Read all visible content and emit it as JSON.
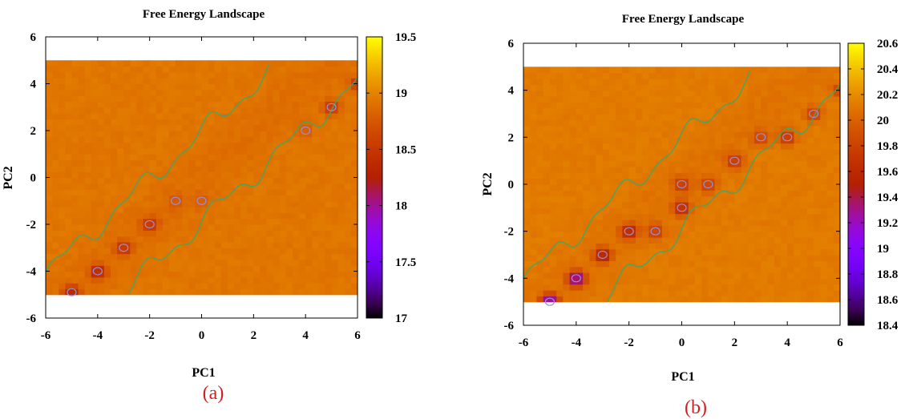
{
  "panels": [
    {
      "caption": "(a)",
      "chart_data": {
        "type": "heatmap",
        "title": "Free Energy Landscape",
        "xlabel": "PC1",
        "ylabel": "PC2",
        "xlim": [
          -6,
          6
        ],
        "ylim": [
          -6,
          6
        ],
        "data_extent": {
          "x": [
            -6,
            6
          ],
          "y": [
            -5,
            5
          ]
        },
        "xticks": [
          -6,
          -4,
          -2,
          0,
          2,
          4,
          6
        ],
        "yticks": [
          -6,
          -4,
          -2,
          0,
          2,
          4,
          6
        ],
        "colorbar": {
          "min": 17,
          "max": 19.5,
          "ticks": [
            "17",
            "17.5",
            "18",
            "18.5",
            "19",
            "19.5"
          ]
        },
        "background_value": 18.93,
        "minima": [
          {
            "x": -5,
            "y": -4.9,
            "value": 18.3
          },
          {
            "x": -4,
            "y": -4,
            "value": 18.3
          },
          {
            "x": -3,
            "y": -3,
            "value": 18.45
          },
          {
            "x": -2,
            "y": -2,
            "value": 18.45
          },
          {
            "x": -1,
            "y": -1,
            "value": 18.75
          },
          {
            "x": 0,
            "y": -1,
            "value": 18.8
          },
          {
            "x": 4,
            "y": 2,
            "value": 18.75
          },
          {
            "x": 5,
            "y": 3,
            "value": 18.45
          },
          {
            "x": 6,
            "y": 4,
            "value": 18.5
          }
        ]
      }
    },
    {
      "caption": "(b)",
      "chart_data": {
        "type": "heatmap",
        "title": "Free Energy Landscape",
        "xlabel": "PC1",
        "ylabel": "PC2",
        "xlim": [
          -6,
          6
        ],
        "ylim": [
          -6,
          6
        ],
        "data_extent": {
          "x": [
            -6,
            6
          ],
          "y": [
            -5,
            5
          ]
        },
        "xticks": [
          -6,
          -4,
          -2,
          0,
          2,
          4,
          6
        ],
        "yticks": [
          -6,
          -4,
          -2,
          0,
          2,
          4,
          6
        ],
        "colorbar": {
          "min": 18.4,
          "max": 20.6,
          "ticks": [
            "18.4",
            "18.6",
            "18.8",
            "19",
            "19.2",
            "19.4",
            "19.6",
            "19.8",
            "20",
            "20.2",
            "20.4",
            "20.6"
          ]
        },
        "background_value": 20.12,
        "minima": [
          {
            "x": -5,
            "y": -5,
            "value": 19.0
          },
          {
            "x": -4,
            "y": -4,
            "value": 19.1
          },
          {
            "x": -3,
            "y": -3,
            "value": 19.45
          },
          {
            "x": -2,
            "y": -2,
            "value": 19.5
          },
          {
            "x": -1,
            "y": -2,
            "value": 19.75
          },
          {
            "x": 0,
            "y": -1,
            "value": 19.55
          },
          {
            "x": 0,
            "y": 0,
            "value": 19.7
          },
          {
            "x": 1,
            "y": 0,
            "value": 19.75
          },
          {
            "x": 2,
            "y": 1,
            "value": 19.7
          },
          {
            "x": 3,
            "y": 2,
            "value": 19.8
          },
          {
            "x": 4,
            "y": 2,
            "value": 19.65
          },
          {
            "x": 5,
            "y": 3,
            "value": 19.75
          },
          {
            "x": 6,
            "y": 4,
            "value": 19.8
          }
        ]
      }
    }
  ]
}
